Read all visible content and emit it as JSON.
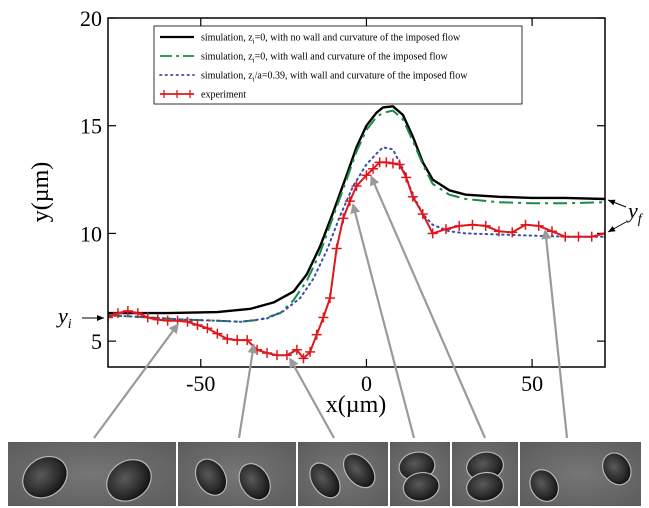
{
  "chart_data": {
    "type": "line",
    "title": "",
    "xlabel": "x(µm)",
    "ylabel": "y(µm)",
    "xlim": [
      -78,
      72
    ],
    "ylim": [
      3.8,
      20
    ],
    "xticks": [
      -50,
      0,
      50
    ],
    "xtick_labels": [
      "-50",
      "0",
      "50"
    ],
    "yticks": [
      5,
      10,
      15,
      20
    ],
    "ytick_labels": [
      "5",
      "10",
      "15",
      "20"
    ],
    "grid": false,
    "legend_position": "top-left",
    "annotations": {
      "yi": "y",
      "yi_sub": "i",
      "yf": "y",
      "yf_sub": "f"
    },
    "series": [
      {
        "name": "simulation, zi=0, with no wall and curvature of the imposed flow",
        "legend_parts": [
          "simulation, z",
          "i",
          "=0, with no wall and curvature of the imposed flow"
        ],
        "style": "solid",
        "color": "#000000",
        "x": [
          -78,
          -60,
          -45,
          -35,
          -28,
          -22,
          -18,
          -14,
          -10,
          -6,
          -3,
          0,
          3,
          5,
          8,
          11,
          14,
          17,
          20,
          25,
          30,
          40,
          50,
          60,
          72
        ],
        "y": [
          6.3,
          6.3,
          6.35,
          6.5,
          6.8,
          7.3,
          8.1,
          9.4,
          11.0,
          12.7,
          14.0,
          15.0,
          15.6,
          15.85,
          15.9,
          15.5,
          14.5,
          13.3,
          12.5,
          12.0,
          11.8,
          11.7,
          11.65,
          11.65,
          11.6
        ]
      },
      {
        "name": "simulation, zi=0, with wall and curvature of the imposed flow",
        "legend_parts": [
          "simulation, z",
          "i",
          "=0, with wall and curvature of the imposed flow"
        ],
        "style": "dashed",
        "color": "#1a8a4a",
        "x": [
          -78,
          -65,
          -55,
          -45,
          -38,
          -32,
          -26,
          -22,
          -18,
          -14,
          -10,
          -6,
          -3,
          0,
          3,
          5,
          8,
          11,
          14,
          17,
          20,
          25,
          30,
          40,
          50,
          60,
          72
        ],
        "y": [
          6.2,
          6.1,
          6.0,
          5.95,
          5.9,
          6.0,
          6.3,
          6.9,
          7.8,
          9.1,
          10.8,
          12.5,
          13.8,
          14.8,
          15.4,
          15.6,
          15.7,
          15.3,
          14.3,
          13.2,
          12.3,
          11.8,
          11.6,
          11.45,
          11.4,
          11.4,
          11.45
        ]
      },
      {
        "name": "simulation, zi/a=0.39, with wall and curvature of the imposed flow",
        "legend_parts": [
          "simulation, z",
          "i",
          "/a=0.39, with wall and curvature of the imposed flow"
        ],
        "style": "dotted",
        "color": "#3a4ea8",
        "x": [
          -78,
          -65,
          -55,
          -45,
          -38,
          -30,
          -25,
          -20,
          -16,
          -12,
          -8,
          -4,
          0,
          3,
          5,
          8,
          11,
          14,
          17,
          20,
          25,
          30,
          40,
          50,
          60,
          72
        ],
        "y": [
          6.2,
          6.1,
          6.0,
          5.95,
          5.9,
          6.05,
          6.4,
          7.0,
          7.9,
          9.2,
          10.8,
          12.2,
          13.2,
          13.7,
          14.0,
          13.9,
          13.0,
          11.8,
          10.9,
          10.4,
          10.1,
          10.0,
          9.95,
          9.9,
          9.85,
          9.85
        ]
      },
      {
        "name": "experiment",
        "legend_parts": [
          "experiment"
        ],
        "style": "solid-markers",
        "color": "#e0161c",
        "x": [
          -78,
          -75,
          -72,
          -69,
          -66,
          -63,
          -60,
          -57,
          -54,
          -51,
          -48,
          -45,
          -42,
          -39,
          -36,
          -33,
          -30,
          -27,
          -24,
          -21,
          -19,
          -17,
          -15,
          -13,
          -11,
          -9,
          -7,
          -5,
          -3,
          0,
          2,
          4,
          6,
          8,
          10,
          12,
          14,
          17,
          20,
          24,
          28,
          32,
          36,
          40,
          44,
          48,
          52,
          56,
          60,
          64,
          68,
          72
        ],
        "y": [
          6.1,
          6.3,
          6.4,
          6.3,
          6.1,
          6.0,
          5.95,
          5.95,
          5.9,
          5.75,
          5.6,
          5.35,
          5.1,
          5.05,
          5.05,
          4.6,
          4.45,
          4.35,
          4.35,
          4.6,
          4.2,
          4.5,
          5.3,
          6.1,
          7.0,
          9.3,
          10.7,
          11.5,
          12.2,
          12.7,
          13.0,
          13.3,
          13.3,
          13.25,
          13.2,
          12.6,
          11.7,
          10.9,
          10.0,
          10.2,
          10.35,
          10.4,
          10.35,
          10.1,
          10.05,
          10.4,
          10.35,
          10.1,
          9.85,
          9.85,
          9.85,
          10.0
        ]
      }
    ]
  },
  "micrograph_strip": {
    "panel_count": 6,
    "panels": [
      {
        "cells": 2,
        "arrow_target": {
          "x": -57,
          "y": 5.95
        }
      },
      {
        "cells": 2,
        "arrow_target": {
          "x": -34,
          "y": 5.0
        }
      },
      {
        "cells": 2,
        "arrow_target": {
          "x": -23,
          "y": 4.35
        }
      },
      {
        "cells": 2,
        "arrow_target": {
          "x": -4,
          "y": 11.5
        }
      },
      {
        "cells": 2,
        "arrow_target": {
          "x": 1.5,
          "y": 12.8
        }
      },
      {
        "cells": 2,
        "arrow_target": {
          "x": 54,
          "y": 10.3
        }
      }
    ]
  },
  "colors": {
    "arrow": "#9a9a9a",
    "axes": "#000000",
    "micrograph_bg": "#6d6d6d",
    "panel_divider": "#ffffff"
  }
}
